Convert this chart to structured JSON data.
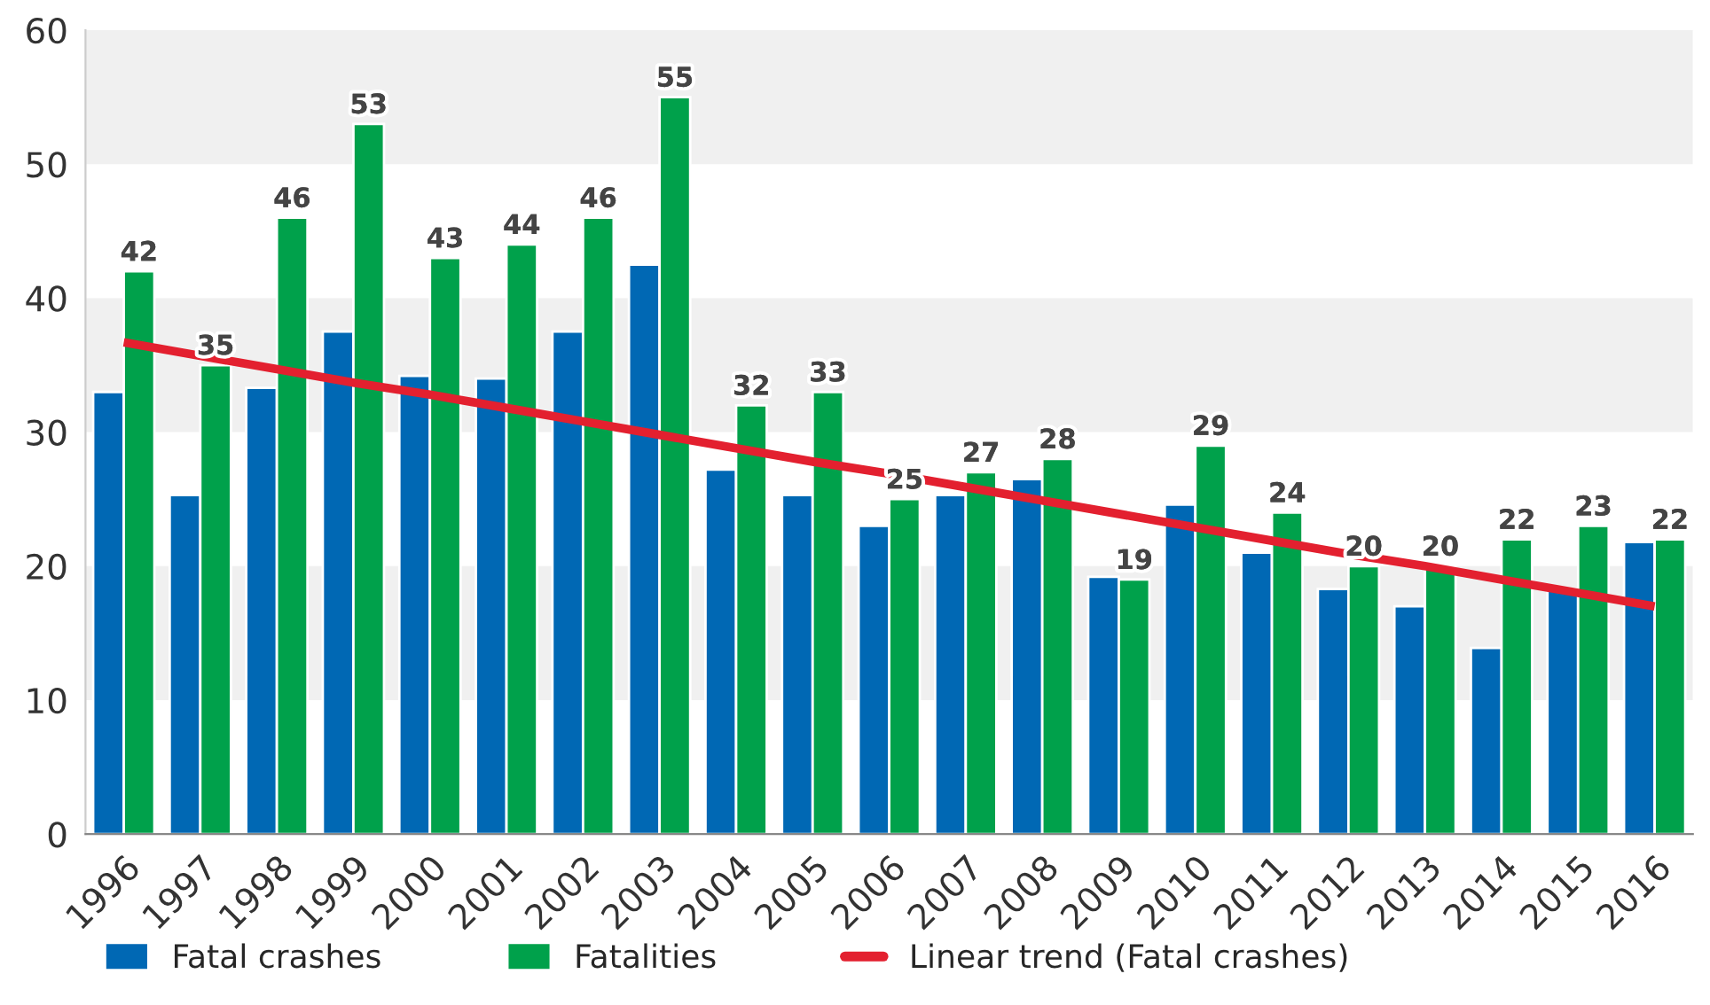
{
  "chart_data": {
    "type": "bar",
    "categories": [
      "1996",
      "1997",
      "1998",
      "1999",
      "2000",
      "2001",
      "2002",
      "2003",
      "2004",
      "2005",
      "2006",
      "2007",
      "2008",
      "2009",
      "2010",
      "2011",
      "2012",
      "2013",
      "2014",
      "2015",
      "2016"
    ],
    "series": [
      {
        "name": "Fatal crashes",
        "color": "#0068b4",
        "values": [
          33,
          25.3,
          33.3,
          37.5,
          34.2,
          34,
          37.5,
          42.5,
          27.2,
          25.3,
          23,
          25.3,
          26.5,
          19.2,
          24.6,
          21,
          18.3,
          17,
          13.9,
          18.3,
          21.8
        ]
      },
      {
        "name": "Fatalities",
        "color": "#00a14b",
        "values": [
          42,
          35,
          46,
          53,
          43,
          44,
          46,
          55,
          32,
          33,
          25,
          27,
          28,
          19,
          29,
          24,
          20,
          20,
          22,
          23,
          22
        ],
        "data_labels": true
      },
      {
        "name": "Linear trend (Fatal crashes)",
        "type": "line",
        "color": "#e3202f",
        "values": [
          36.7,
          35.7,
          34.7,
          33.7,
          32.8,
          31.8,
          30.8,
          29.8,
          28.8,
          27.8,
          26.9,
          25.9,
          24.9,
          23.9,
          22.9,
          21.9,
          20.9,
          20,
          19,
          18,
          17
        ]
      }
    ],
    "ylim": [
      0,
      60
    ],
    "yticks": [
      0,
      10,
      20,
      30,
      40,
      50,
      60
    ],
    "bands": [
      {
        "axis": "y",
        "from": 10,
        "to": 20,
        "color": "#f0f0f0"
      },
      {
        "axis": "y",
        "from": 30,
        "to": 40,
        "color": "#f0f0f0"
      },
      {
        "axis": "y",
        "from": 50,
        "to": 60,
        "color": "#f0f0f0"
      }
    ],
    "grid": false,
    "legend": "bottom"
  }
}
